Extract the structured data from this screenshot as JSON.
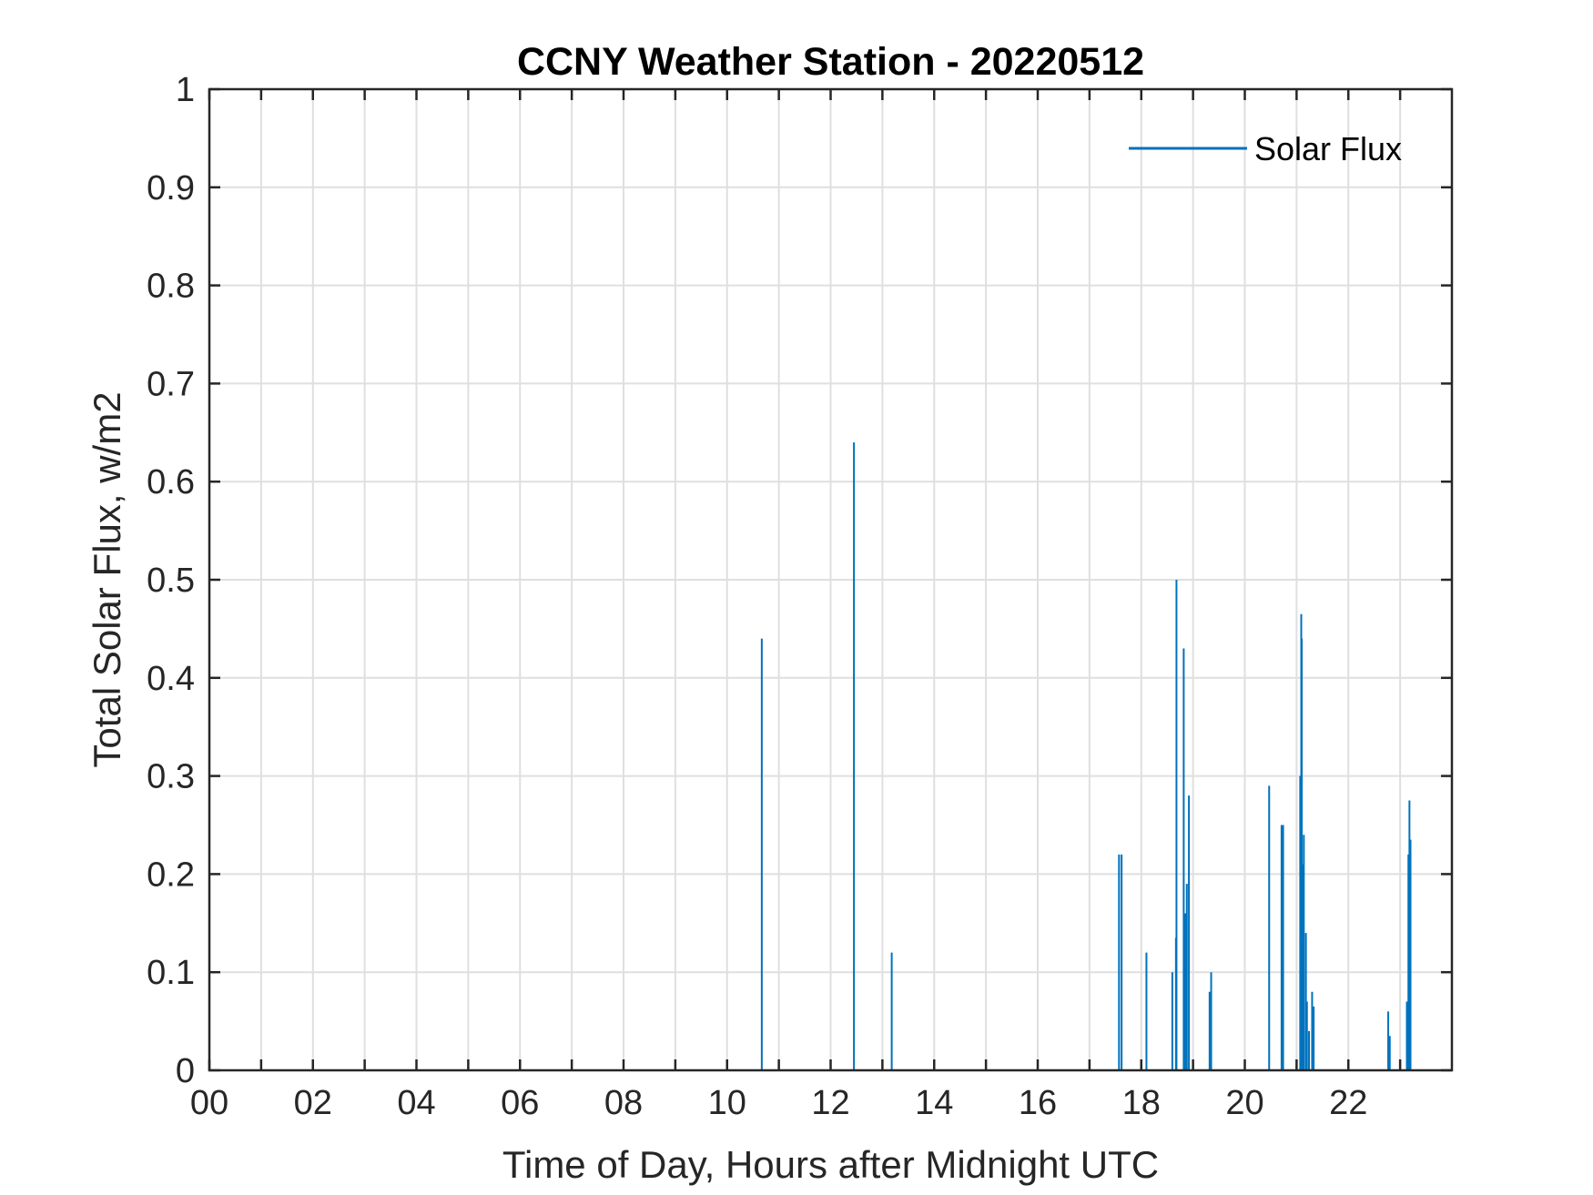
{
  "chart_data": {
    "type": "bar",
    "title": "CCNY Weather Station - 20220512",
    "xlabel": "Time of Day, Hours after Midnight UTC",
    "ylabel": "Total Solar Flux, w/m2",
    "xlim": [
      0,
      24
    ],
    "ylim": [
      0,
      1
    ],
    "x_ticks": [
      0,
      2,
      4,
      6,
      8,
      10,
      12,
      14,
      16,
      18,
      20,
      22
    ],
    "x_tick_labels": [
      "00",
      "02",
      "04",
      "06",
      "08",
      "10",
      "12",
      "14",
      "16",
      "18",
      "20",
      "22"
    ],
    "x_minor_grid": [
      1,
      3,
      5,
      7,
      9,
      11,
      13,
      15,
      17,
      19,
      21,
      23
    ],
    "y_ticks": [
      0,
      0.1,
      0.2,
      0.3,
      0.4,
      0.5,
      0.6,
      0.7,
      0.8,
      0.9,
      1
    ],
    "y_tick_labels": [
      "0",
      "0.1",
      "0.2",
      "0.3",
      "0.4",
      "0.5",
      "0.6",
      "0.7",
      "0.8",
      "0.9",
      "1"
    ],
    "grid": true,
    "legend": {
      "position": "top-right",
      "entries": [
        "Solar Flux"
      ]
    },
    "series": [
      {
        "name": "Solar Flux",
        "color": "#0072bd",
        "x": [
          10.67,
          12.45,
          13.18,
          17.57,
          17.62,
          18.1,
          18.6,
          18.67,
          18.68,
          18.82,
          18.85,
          18.88,
          18.92,
          19.32,
          19.35,
          20.47,
          20.71,
          20.74,
          21.07,
          21.09,
          21.1,
          21.12,
          21.14,
          21.18,
          21.2,
          21.24,
          21.3,
          21.33,
          22.77,
          22.8,
          23.13,
          23.16,
          23.18,
          23.2
        ],
        "values": [
          0.44,
          0.64,
          0.12,
          0.22,
          0.22,
          0.12,
          0.1,
          0.135,
          0.5,
          0.43,
          0.16,
          0.19,
          0.28,
          0.08,
          0.1,
          0.29,
          0.25,
          0.25,
          0.3,
          0.465,
          0.44,
          0.21,
          0.24,
          0.14,
          0.07,
          0.04,
          0.08,
          0.065,
          0.06,
          0.035,
          0.07,
          0.22,
          0.275,
          0.235
        ]
      }
    ]
  }
}
